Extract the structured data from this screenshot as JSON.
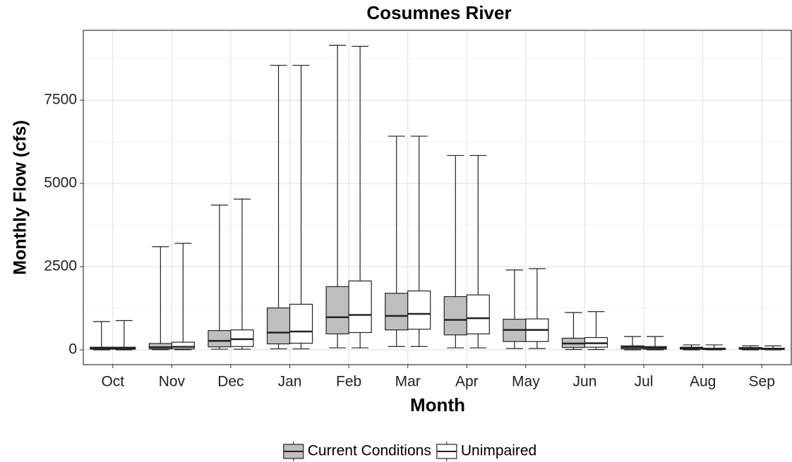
{
  "chart_data": {
    "type": "box",
    "title": "Cosumnes River",
    "x_label": "Month",
    "y_label": "Monthly Flow (cfs)",
    "categories": [
      "Oct",
      "Nov",
      "Dec",
      "Jan",
      "Feb",
      "Mar",
      "Apr",
      "May",
      "Jun",
      "Jul",
      "Aug",
      "Sep"
    ],
    "series": [
      {
        "name": "Current Conditions",
        "color": "#bebebe",
        "min": [
          0,
          5,
          20,
          30,
          60,
          100,
          60,
          40,
          10,
          0,
          0,
          0
        ],
        "q1": [
          20,
          30,
          90,
          180,
          480,
          600,
          450,
          250,
          70,
          30,
          20,
          20
        ],
        "median": [
          50,
          80,
          270,
          520,
          980,
          1020,
          900,
          600,
          190,
          80,
          50,
          40
        ],
        "q3": [
          80,
          190,
          580,
          1260,
          1900,
          1700,
          1600,
          920,
          350,
          120,
          80,
          70
        ],
        "max": [
          850,
          3100,
          4350,
          8550,
          9150,
          6420,
          5840,
          2400,
          1120,
          400,
          150,
          120
        ]
      },
      {
        "name": "Unimpaired",
        "color": "#ffffff",
        "min": [
          0,
          5,
          20,
          30,
          60,
          100,
          60,
          40,
          10,
          0,
          0,
          0
        ],
        "q1": [
          20,
          30,
          100,
          200,
          520,
          620,
          480,
          250,
          80,
          20,
          10,
          10
        ],
        "median": [
          50,
          90,
          320,
          550,
          1050,
          1080,
          950,
          600,
          200,
          60,
          30,
          30
        ],
        "q3": [
          80,
          230,
          600,
          1370,
          2070,
          1770,
          1650,
          930,
          370,
          100,
          50,
          50
        ],
        "max": [
          880,
          3200,
          4530,
          8550,
          9120,
          6420,
          5840,
          2440,
          1150,
          400,
          150,
          120
        ]
      }
    ],
    "ylim": [
      -445,
      9600
    ],
    "yticks": [
      0,
      2500,
      5000,
      7500
    ],
    "y_minor_ticks": [
      1250,
      3750,
      6250,
      8750
    ],
    "grid": true,
    "legend": "bottom"
  }
}
